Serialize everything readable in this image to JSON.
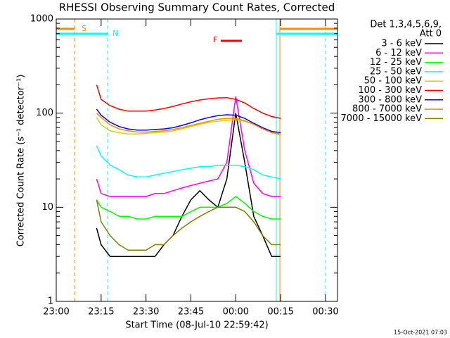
{
  "chart_data": {
    "type": "line",
    "title": "RHESSI Observing Summary Count Rates, Corrected",
    "x_label": "Start Time (08-Jul-10 22:59:42)",
    "y_label": "Corrected Count Rate (s⁻¹ detector⁻¹)",
    "log_y": true,
    "ylim": [
      1,
      1000
    ],
    "yticks": [
      1,
      10,
      100,
      1000
    ],
    "xlim": [
      0,
      94
    ],
    "xticks": [
      {
        "value": 0,
        "label": "23:00"
      },
      {
        "value": 15,
        "label": "23:15"
      },
      {
        "value": 30,
        "label": "23:30"
      },
      {
        "value": 45,
        "label": "23:45"
      },
      {
        "value": 60,
        "label": "00:00"
      },
      {
        "value": 75,
        "label": "00:15"
      },
      {
        "value": 90,
        "label": "00:30"
      }
    ],
    "legend_header": [
      "Det 1,3,4,5,6,9,",
      "Att 0"
    ],
    "legend_position": "right",
    "annotations": [
      "S",
      "N",
      "F"
    ],
    "footer": "15-Oct-2021 07:03",
    "x": [
      13.5,
      15,
      18,
      21,
      24,
      27,
      30,
      33,
      36,
      39,
      42,
      45,
      48,
      51,
      54,
      57,
      60,
      63,
      66,
      69,
      72,
      75
    ],
    "series": [
      {
        "name": "3 - 6 keV",
        "color": "#000000",
        "values": [
          6,
          4,
          3,
          3,
          3,
          3,
          3,
          3,
          4,
          5,
          8,
          12,
          15,
          12,
          10,
          20,
          100,
          30,
          8,
          5,
          3,
          3
        ]
      },
      {
        "name": "6 - 12 keV",
        "color": "#ff00ff",
        "values": [
          20,
          14,
          13,
          13,
          13,
          13,
          13,
          14,
          14,
          15,
          16,
          17,
          18,
          19,
          20,
          30,
          150,
          40,
          18,
          14,
          13,
          13
        ]
      },
      {
        "name": "12 - 25 keV",
        "color": "#00ff00",
        "values": [
          12,
          10,
          9,
          8,
          8,
          7.5,
          7.5,
          8,
          8,
          8,
          8,
          9,
          10,
          10,
          10,
          11,
          13,
          11,
          9,
          8,
          7.5,
          7.5
        ]
      },
      {
        "name": "25 - 50 keV",
        "color": "#00ffff",
        "values": [
          45,
          35,
          28,
          25,
          22,
          21,
          21,
          22,
          23,
          24,
          25,
          26,
          27,
          27,
          28,
          28,
          28,
          27,
          25,
          22,
          21,
          20
        ]
      },
      {
        "name": "50 - 100 keV",
        "color": "#d2d200",
        "values": [
          90,
          75,
          65,
          62,
          60,
          60,
          61,
          62,
          63,
          65,
          68,
          72,
          76,
          80,
          82,
          84,
          85,
          82,
          76,
          68,
          62,
          58
        ]
      },
      {
        "name": "100 - 300 keV",
        "color": "#ff0000",
        "values": [
          200,
          140,
          120,
          110,
          105,
          105,
          105,
          108,
          112,
          118,
          125,
          132,
          138,
          142,
          145,
          146,
          140,
          128,
          112,
          100,
          92,
          88
        ]
      },
      {
        "name": "300 - 800 keV",
        "color": "#0000ff",
        "values": [
          110,
          95,
          80,
          72,
          68,
          66,
          66,
          67,
          68,
          70,
          74,
          79,
          85,
          90,
          94,
          96,
          95,
          88,
          78,
          70,
          64,
          62
        ]
      },
      {
        "name": "800 - 7000 keV",
        "color": "#ff8c00",
        "values": [
          100,
          90,
          75,
          68,
          65,
          63,
          63,
          64,
          65,
          67,
          70,
          74,
          78,
          82,
          86,
          88,
          88,
          83,
          76,
          68,
          62,
          60
        ]
      },
      {
        "name": "7000 - 15000 keV",
        "color": "#808000",
        "values": [
          12,
          7,
          5,
          4,
          3.5,
          3.5,
          3.5,
          4,
          4,
          5,
          6,
          7,
          8,
          9,
          10,
          10,
          10,
          9,
          7,
          5,
          4,
          4
        ]
      }
    ]
  }
}
